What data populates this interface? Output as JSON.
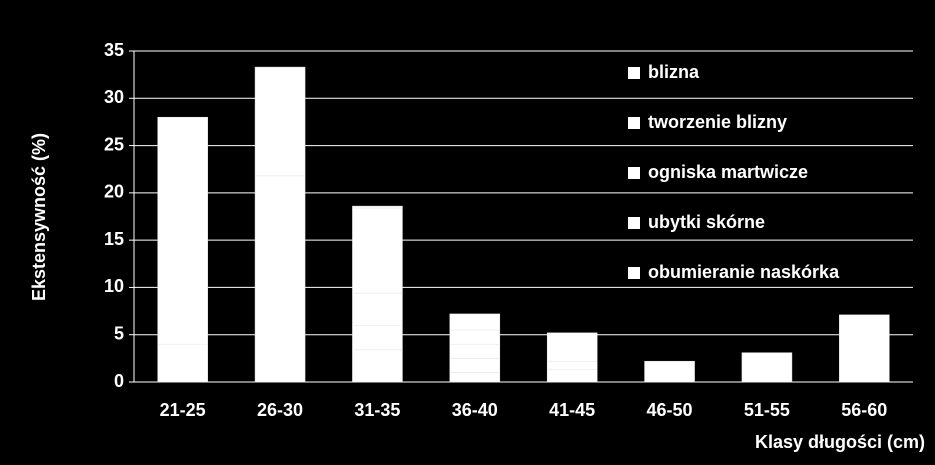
{
  "chart_data": {
    "type": "stacked-bar",
    "y_label": "Ekstensywność (%)",
    "x_label": "Klasy długości (cm)",
    "categories": [
      "21-25",
      "26-30",
      "31-35",
      "36-40",
      "41-45",
      "46-50",
      "51-55",
      "56-60"
    ],
    "series": [
      {
        "name": "obumieranie naskórka",
        "color": "#ffffff",
        "values": [
          4.0,
          21.8,
          3.4,
          1.0,
          1.3,
          2.2,
          3.1,
          7.1
        ]
      },
      {
        "name": "ubytki skórne",
        "color": "#ffffff",
        "values": [
          0,
          0,
          2.6,
          1.5,
          0.9,
          0,
          0,
          0
        ]
      },
      {
        "name": "ogniska martwicze",
        "color": "#ffffff",
        "values": [
          0,
          0,
          3.4,
          1.5,
          0,
          0,
          0,
          0
        ]
      },
      {
        "name": "tworzenie blizny",
        "color": "#ffffff",
        "values": [
          0,
          0,
          9.0,
          1.5,
          0,
          0,
          0,
          0
        ]
      },
      {
        "name": "blizna",
        "color": "#ffffff",
        "values": [
          24.0,
          11.5,
          0.2,
          1.7,
          3.0,
          0,
          0,
          0
        ]
      }
    ],
    "ylim": [
      0,
      35
    ],
    "yticks": [
      0,
      5,
      10,
      15,
      20,
      25,
      30,
      35
    ],
    "grid": true,
    "legend": "right"
  }
}
